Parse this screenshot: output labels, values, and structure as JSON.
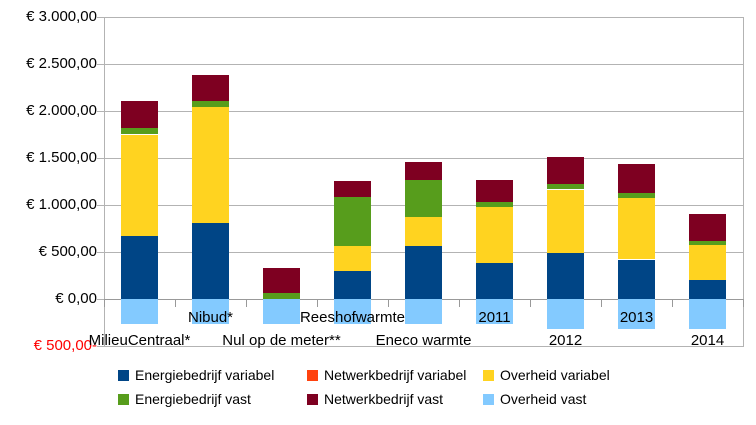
{
  "chart_data": {
    "type": "bar",
    "stacked": true,
    "title": "",
    "categories": [
      "MilieuCentraal*",
      "Nibud*",
      "Nul op de meter**",
      "Reeshofwarmte",
      "Eneco warmte",
      "2011",
      "2012",
      "2013",
      "2014"
    ],
    "series": [
      {
        "name": "Energiebedrijf variabel",
        "color": "#004586",
        "values": [
          670,
          810,
          0,
          300,
          565,
          385,
          490,
          420,
          200
        ]
      },
      {
        "name": "Netwerkbedrijf variabel",
        "color": "#ff420e",
        "values": [
          0,
          0,
          0,
          0,
          0,
          0,
          0,
          0,
          0
        ]
      },
      {
        "name": "Overheid variabel",
        "color": "#ffd320",
        "values": [
          1080,
          1235,
          0,
          260,
          310,
          590,
          675,
          650,
          375
        ]
      },
      {
        "name": "Energiebedrijf vast",
        "color": "#579d1c",
        "values": [
          65,
          60,
          60,
          530,
          390,
          60,
          55,
          55,
          45
        ]
      },
      {
        "name": "Netwerkbedrijf vast",
        "color": "#7e0021",
        "values": [
          290,
          275,
          270,
          165,
          190,
          230,
          295,
          310,
          290
        ]
      },
      {
        "name": "Overheid vast",
        "color": "#83caff",
        "values": [
          -265,
          -265,
          -265,
          -265,
          -265,
          -265,
          -320,
          -320,
          -320
        ]
      }
    ],
    "y_axis": {
      "min": -500,
      "max": 3000,
      "step": 500,
      "labels": [
        "€ 3.000,00",
        "€ 2.500,00",
        "€ 2.000,00",
        "€ 1.500,00",
        "€ 1.000,00",
        "€ 500,00",
        "€ 0,00",
        "€ 500,00-"
      ],
      "negative_label_color": "#ff0000"
    },
    "x_axis": {
      "staggered_labels": true
    },
    "legend": {
      "position": "bottom",
      "rows": 2,
      "columns": 3
    },
    "grid": true,
    "colors": {
      "gridline": "#b3b3b3",
      "zero_line": "#999999",
      "text": "#000000",
      "background": "#ffffff"
    }
  }
}
